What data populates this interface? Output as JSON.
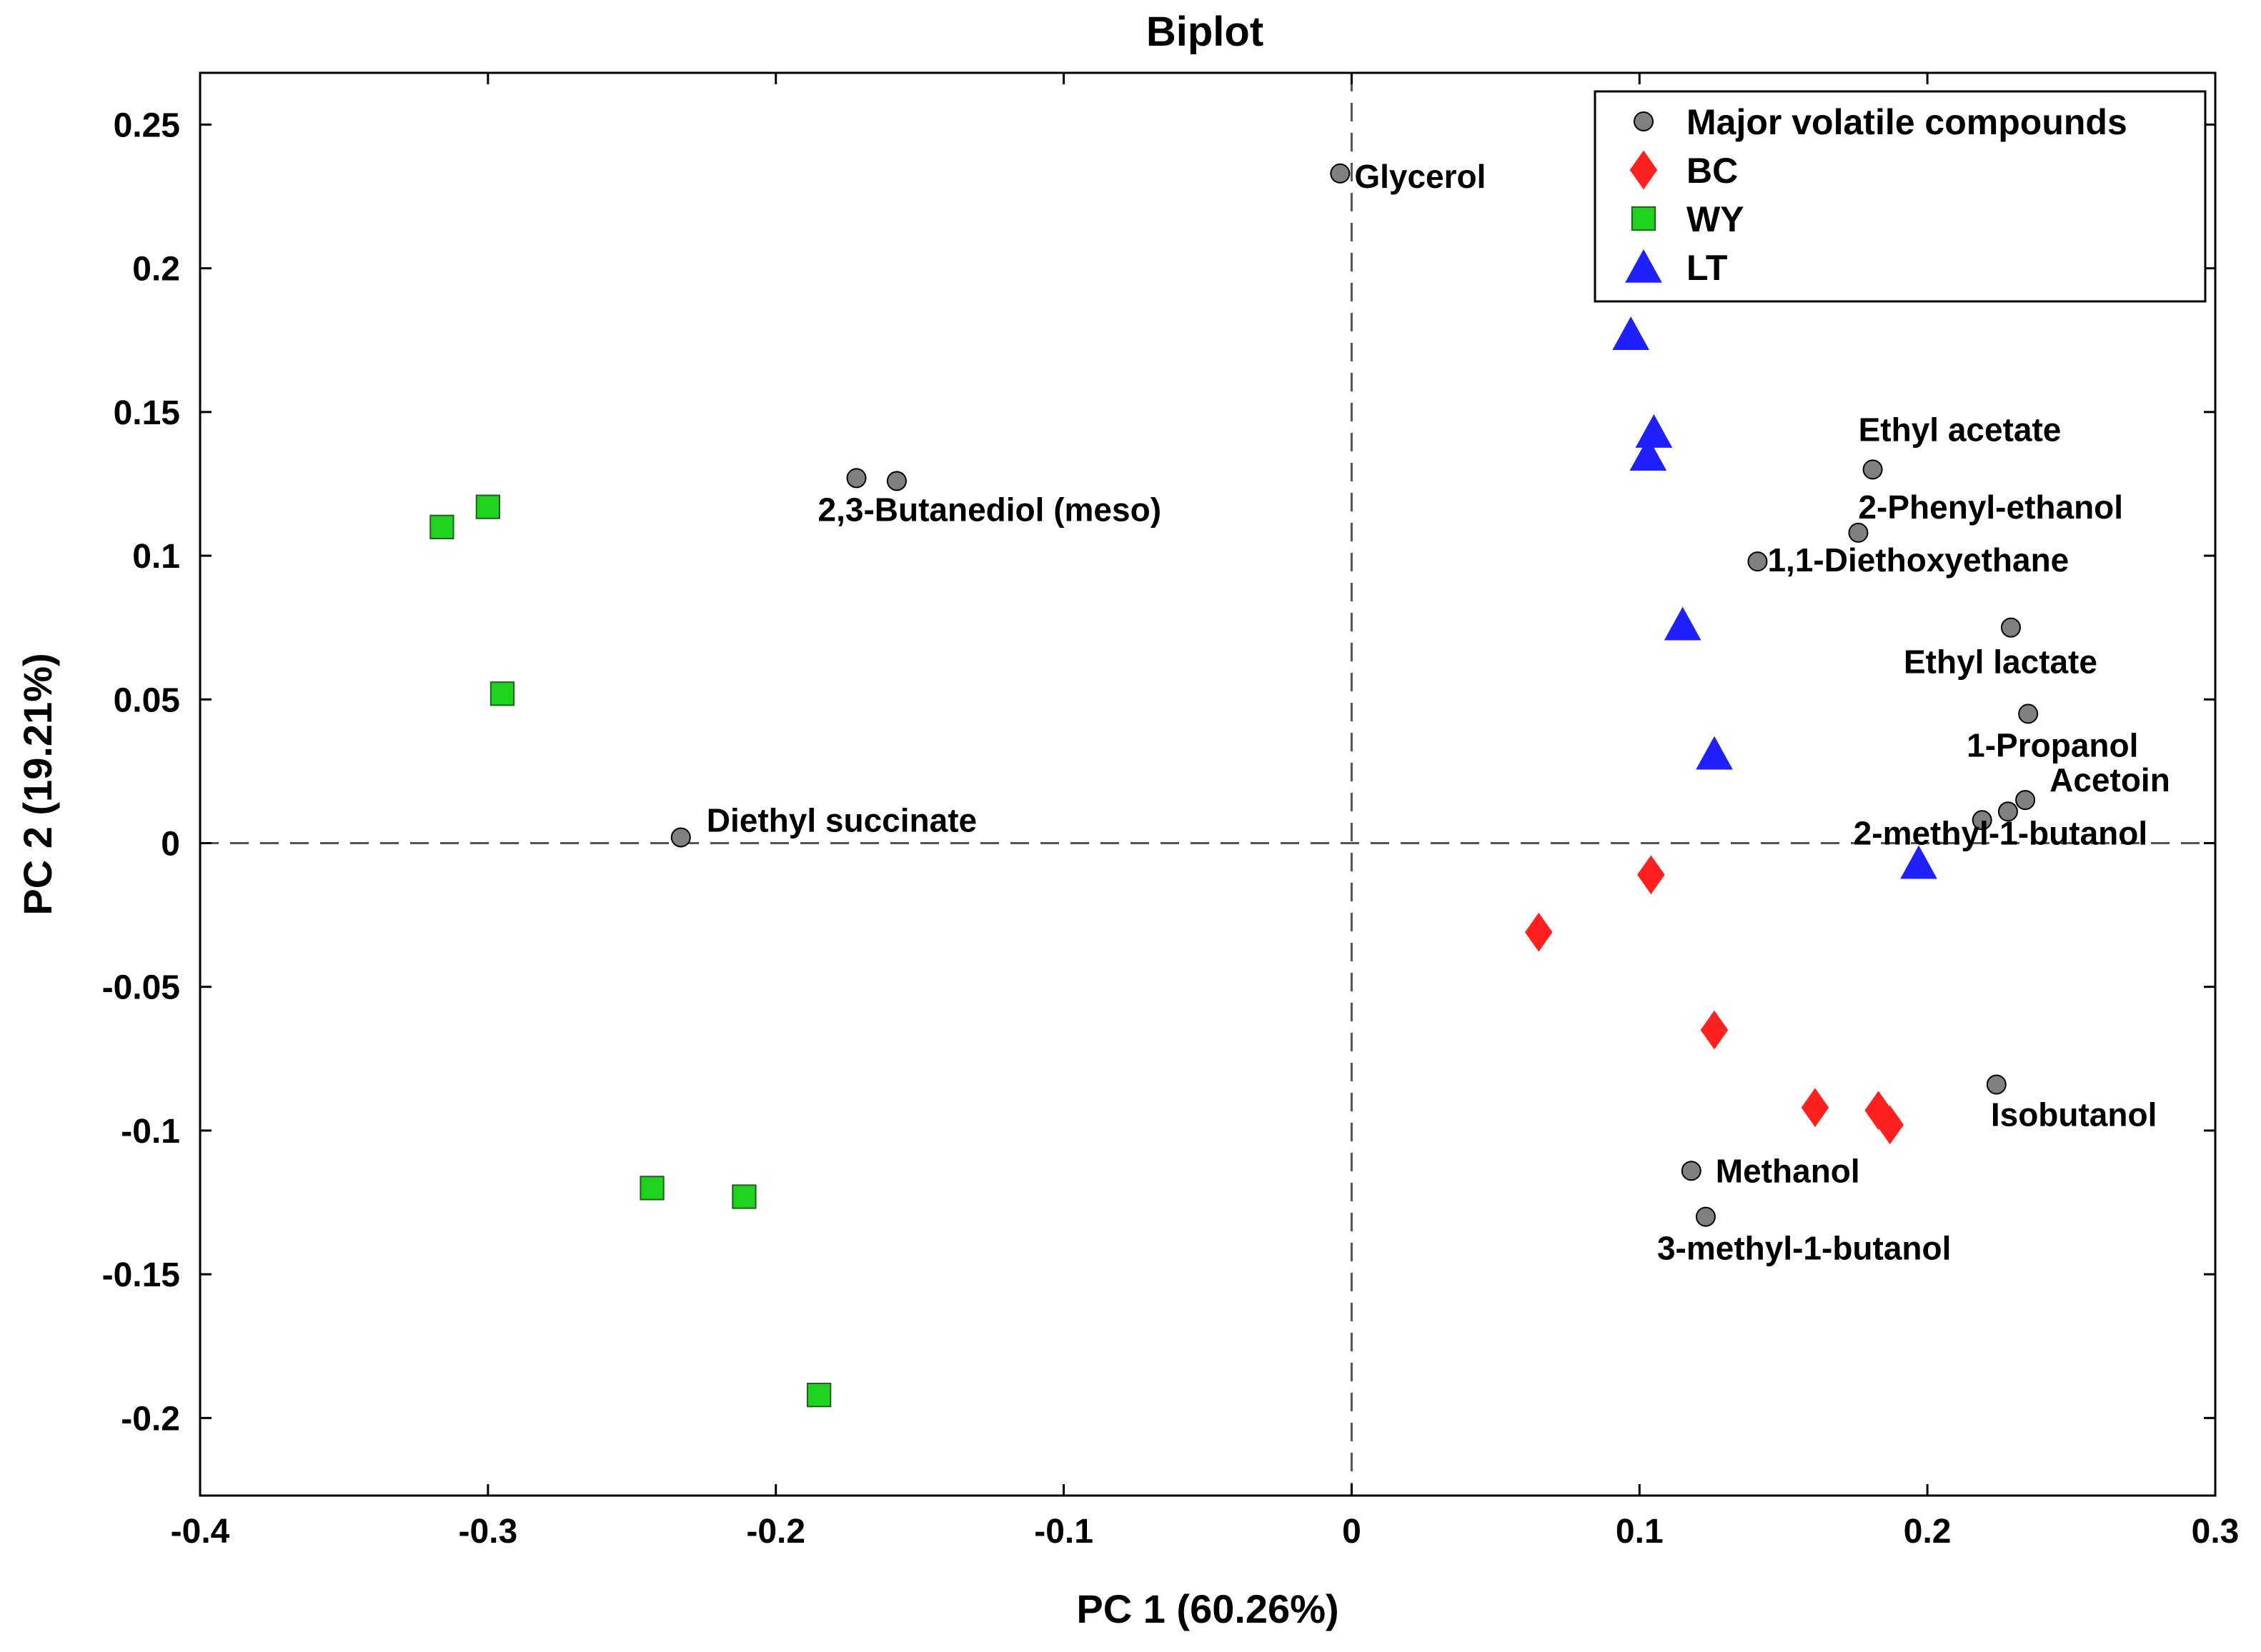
{
  "chart_data": {
    "type": "scatter",
    "title": "Biplot",
    "xlabel": "PC 1 (60.26%)",
    "ylabel": "PC 2 (19.21%)",
    "xlim": [
      -0.4,
      0.3
    ],
    "ylim": [
      -0.227,
      0.268
    ],
    "xticks": [
      -0.4,
      -0.3,
      -0.2,
      -0.1,
      0,
      0.1,
      0.2,
      0.3
    ],
    "xtick_labels": [
      "-0.4",
      "-0.3",
      "-0.2",
      "-0.1",
      "0",
      "0.1",
      "0.2",
      "0.3"
    ],
    "yticks": [
      -0.2,
      -0.15,
      -0.1,
      -0.05,
      0,
      0.05,
      0.1,
      0.15,
      0.2,
      0.25
    ],
    "ytick_labels": [
      "-0.2",
      "-0.15",
      "-0.1",
      "-0.05",
      "0",
      "0.05",
      "0.1",
      "0.15",
      "0.2",
      "0.25"
    ],
    "grid": false,
    "reference_lines": {
      "x": 0,
      "y": 0
    },
    "legend_position": "top-right",
    "series": [
      {
        "name": "Major volatile compounds",
        "marker": "circle",
        "color": "#808080",
        "points": [
          {
            "x": -0.004,
            "y": 0.233,
            "label": "Glycerol"
          },
          {
            "x": -0.172,
            "y": 0.127,
            "label": "2,3-Butanediol (meso)"
          },
          {
            "x": -0.158,
            "y": 0.126,
            "label": ""
          },
          {
            "x": -0.233,
            "y": 0.002,
            "label": "Diethyl succinate"
          },
          {
            "x": 0.181,
            "y": 0.13,
            "label": "Ethyl acetate"
          },
          {
            "x": 0.176,
            "y": 0.108,
            "label": "2-Phenyl-ethanol"
          },
          {
            "x": 0.141,
            "y": 0.098,
            "label": "1,1-Diethoxyethane"
          },
          {
            "x": 0.229,
            "y": 0.075,
            "label": "Ethyl lactate"
          },
          {
            "x": 0.235,
            "y": 0.045,
            "label": "1-Propanol"
          },
          {
            "x": 0.234,
            "y": 0.015,
            "label": "Acetoin"
          },
          {
            "x": 0.228,
            "y": 0.011,
            "label": ""
          },
          {
            "x": 0.219,
            "y": 0.008,
            "label": "2-methyl-1-butanol"
          },
          {
            "x": 0.224,
            "y": -0.084,
            "label": "Isobutanol"
          },
          {
            "x": 0.118,
            "y": -0.114,
            "label": "Methanol"
          },
          {
            "x": 0.123,
            "y": -0.13,
            "label": "3-methyl-1-butanol"
          }
        ]
      },
      {
        "name": "BC",
        "marker": "diamond",
        "color": "#ff2020",
        "points": [
          {
            "x": 0.104,
            "y": -0.011
          },
          {
            "x": 0.065,
            "y": -0.031
          },
          {
            "x": 0.126,
            "y": -0.065
          },
          {
            "x": 0.161,
            "y": -0.092
          },
          {
            "x": 0.183,
            "y": -0.093
          },
          {
            "x": 0.187,
            "y": -0.098
          }
        ]
      },
      {
        "name": "WY",
        "marker": "square",
        "color": "#1ed21e",
        "points": [
          {
            "x": -0.316,
            "y": 0.11
          },
          {
            "x": -0.3,
            "y": 0.117
          },
          {
            "x": -0.295,
            "y": 0.052
          },
          {
            "x": -0.243,
            "y": -0.12
          },
          {
            "x": -0.211,
            "y": -0.123
          },
          {
            "x": -0.185,
            "y": -0.192
          }
        ]
      },
      {
        "name": "LT",
        "marker": "triangle",
        "color": "#2020ff",
        "points": [
          {
            "x": 0.097,
            "y": 0.177
          },
          {
            "x": 0.105,
            "y": 0.143
          },
          {
            "x": 0.103,
            "y": 0.135
          },
          {
            "x": 0.115,
            "y": 0.076
          },
          {
            "x": 0.126,
            "y": 0.031
          },
          {
            "x": 0.197,
            "y": -0.007
          }
        ]
      }
    ]
  }
}
